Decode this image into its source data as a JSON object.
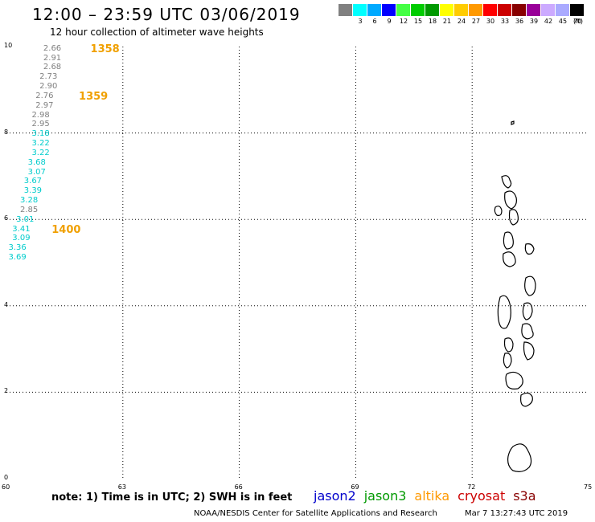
{
  "header": {
    "title": "12:00 – 23:59 UTC 03/06/2019",
    "subtitle": "12 hour collection of altimeter wave heights"
  },
  "colorbar": {
    "colors": [
      "#808080",
      "#00ffff",
      "#00aaff",
      "#0000ff",
      "#44ff44",
      "#00cc00",
      "#009900",
      "#ffff00",
      "#ffcc00",
      "#ff9900",
      "#ff0000",
      "#cc0000",
      "#880000",
      "#990099",
      "#ccaaff",
      "#aaaaff",
      "#000000"
    ],
    "labels": [
      "",
      "3",
      "6",
      "9",
      "12",
      "15",
      "18",
      "21",
      "24",
      "27",
      "30",
      "33",
      "36",
      "39",
      "42",
      "45",
      "70"
    ],
    "unit": "(ft)"
  },
  "map": {
    "lon_ticks": [
      "60",
      "63",
      "66",
      "69",
      "72",
      "75"
    ],
    "lat_ticks": [
      "0",
      "2",
      "4",
      "6",
      "8",
      "10"
    ],
    "lon_range": [
      60,
      75
    ],
    "lat_range": [
      0,
      10
    ]
  },
  "observations": [
    {
      "value": "2.66",
      "color": "#808080",
      "lon": 61.2,
      "lat": 9.95
    },
    {
      "value": "2.91",
      "color": "#808080",
      "lon": 61.2,
      "lat": 9.73
    },
    {
      "value": "2.68",
      "color": "#808080",
      "lon": 61.2,
      "lat": 9.51
    },
    {
      "value": "2.73",
      "color": "#808080",
      "lon": 61.1,
      "lat": 9.29
    },
    {
      "value": "2.90",
      "color": "#808080",
      "lon": 61.1,
      "lat": 9.07
    },
    {
      "value": "2.76",
      "color": "#808080",
      "lon": 61.0,
      "lat": 8.85
    },
    {
      "value": "2.97",
      "color": "#808080",
      "lon": 61.0,
      "lat": 8.63
    },
    {
      "value": "2.98",
      "color": "#808080",
      "lon": 60.9,
      "lat": 8.41
    },
    {
      "value": "2.95",
      "color": "#808080",
      "lon": 60.9,
      "lat": 8.19
    },
    {
      "value": "3.18",
      "color": "#00cccc",
      "lon": 60.9,
      "lat": 7.97
    },
    {
      "value": "3.22",
      "color": "#00cccc",
      "lon": 60.9,
      "lat": 7.75
    },
    {
      "value": "3.22",
      "color": "#00cccc",
      "lon": 60.9,
      "lat": 7.53
    },
    {
      "value": "3.68",
      "color": "#00cccc",
      "lon": 60.8,
      "lat": 7.31
    },
    {
      "value": "3.07",
      "color": "#00cccc",
      "lon": 60.8,
      "lat": 7.09
    },
    {
      "value": "3.67",
      "color": "#00cccc",
      "lon": 60.7,
      "lat": 6.87
    },
    {
      "value": "3.39",
      "color": "#00cccc",
      "lon": 60.7,
      "lat": 6.65
    },
    {
      "value": "3.28",
      "color": "#00cccc",
      "lon": 60.6,
      "lat": 6.43
    },
    {
      "value": "2.85",
      "color": "#808080",
      "lon": 60.6,
      "lat": 6.21
    },
    {
      "value": "3.01",
      "color": "#00cccc",
      "lon": 60.5,
      "lat": 5.99
    },
    {
      "value": "3.41",
      "color": "#00cccc",
      "lon": 60.4,
      "lat": 5.77
    },
    {
      "value": "3.09",
      "color": "#00cccc",
      "lon": 60.4,
      "lat": 5.55
    },
    {
      "value": "3.36",
      "color": "#00cccc",
      "lon": 60.3,
      "lat": 5.33
    },
    {
      "value": "3.69",
      "color": "#00cccc",
      "lon": 60.3,
      "lat": 5.11
    }
  ],
  "time_labels": [
    {
      "text": "1358",
      "lon": 62.0,
      "lat": 9.95
    },
    {
      "text": "1359",
      "lon": 61.7,
      "lat": 8.85
    },
    {
      "text": "1400",
      "lon": 61.0,
      "lat": 5.77
    }
  ],
  "footer": {
    "note": "note:  1) Time is in UTC; 2) SWH is in feet",
    "satellites": [
      {
        "name": "jason2",
        "color": "#0000cc"
      },
      {
        "name": "jason3",
        "color": "#009900"
      },
      {
        "name": "altika",
        "color": "#ff9900"
      },
      {
        "name": "cryosat",
        "color": "#cc0000"
      },
      {
        "name": "s3a",
        "color": "#880000"
      }
    ],
    "credit": "NOAA/NESDIS Center for Satellite Applications and Research",
    "timestamp": "Mar  7 13:27:43 UTC 2019"
  }
}
